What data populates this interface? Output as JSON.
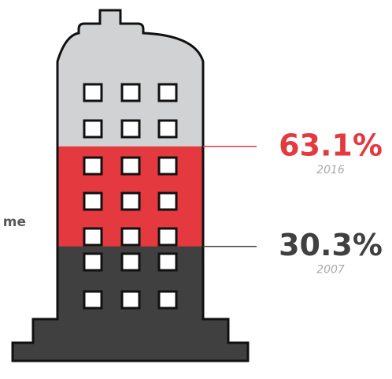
{
  "chart_data": {
    "type": "building",
    "annotation": "me",
    "categories": [
      "2016",
      "2007"
    ],
    "values": [
      63.1,
      30.3
    ],
    "value_labels": [
      "63.1%",
      "30.3%"
    ],
    "colors": [
      "#e3393f",
      "#404041"
    ],
    "background_color": "#d1d2d3",
    "ylim": [
      0,
      100
    ]
  }
}
